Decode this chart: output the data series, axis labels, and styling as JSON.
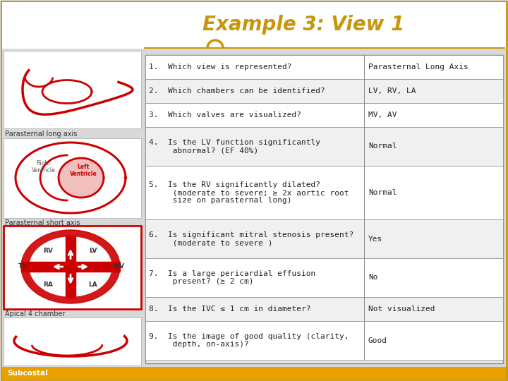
{
  "title": "Example 3: View 1",
  "title_color": "#C8960C",
  "background_color": "#D8D8D8",
  "header_bar_color": "#C8960C",
  "footer_bar_color": "#E8A000",
  "left_labels": [
    "Parasternal long axis",
    "Parasternal short axis",
    "Apical 4 chamber",
    "Subcostal"
  ],
  "questions_line1": [
    "1.  Which view is represented?",
    "2.  Which chambers can be identified?",
    "3.  Which valves are visualized?",
    "4.  Is the LV function significantly",
    "5.  Is the RV significantly dilated?",
    "6.  Is significant mitral stenosis present?",
    "7.  Is a large pericardial effusion",
    "8.  Is the IVC ≤ 1 cm in diameter?",
    "9.  Is the image of good quality (clarity,"
  ],
  "questions_line2": [
    "",
    "",
    "",
    "     abnormal? (EF 40%)",
    "     (moderate to severe; ≥ 2x aortic root",
    "     (moderate to severe )",
    "     present? (≥ 2 cm)",
    "",
    "     depth, on-axis)?"
  ],
  "questions_line3": [
    "",
    "",
    "",
    "",
    "     size on parasternal long)",
    "",
    "",
    "",
    ""
  ],
  "answers": [
    "Parasternal Long Axis",
    "LV, RV, LA",
    "MV, AV",
    "Normal",
    "Normal",
    "Yes",
    "No",
    "Not visualized",
    "Good"
  ],
  "row_colors": [
    "#FFFFFF",
    "#F0F0F0"
  ],
  "border_color": "#888888",
  "text_color": "#222222",
  "font_size_title": 20,
  "font_size_table": 8,
  "font_size_label": 7,
  "circle_color": "#C8960C",
  "apical_border_color": "#CC0000",
  "outer_border_color": "#C8960C",
  "white_panel_bg": "#FFFFFF",
  "gray_bg": "#D8D8D8"
}
